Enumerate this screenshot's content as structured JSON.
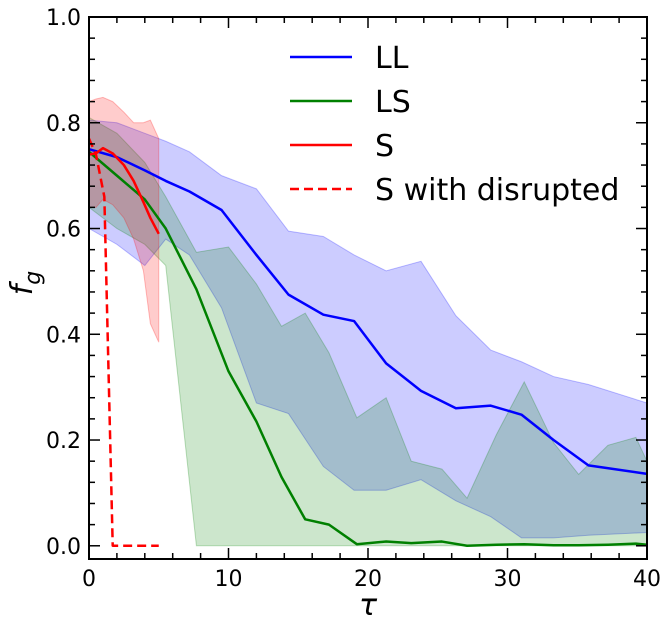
{
  "chart_data": {
    "type": "line",
    "title": "",
    "xlabel": "τ",
    "ylabel_main": "f",
    "ylabel_sub": "g",
    "xlim": [
      0,
      40
    ],
    "ylim": [
      -0.025,
      1.0
    ],
    "xticks": [
      0,
      10,
      20,
      30,
      40
    ],
    "xtick_labels": [
      "0",
      "10",
      "20",
      "30",
      "40"
    ],
    "yticks": [
      0.0,
      0.2,
      0.4,
      0.6,
      0.8,
      1.0
    ],
    "ytick_labels": [
      "0.0",
      "0.2",
      "0.4",
      "0.6",
      "0.8",
      "1.0"
    ],
    "grid": false,
    "legend_position": "top-right",
    "series": [
      {
        "name": "LL",
        "color": "#0000ff",
        "style": "solid",
        "x": [
          0,
          2,
          4,
          5.5,
          7.2,
          9.5,
          12,
          14.3,
          16.8,
          19,
          21.3,
          23.8,
          26.3,
          28.8,
          31,
          33.3,
          35.8,
          40
        ],
        "y": [
          0.75,
          0.735,
          0.71,
          0.69,
          0.67,
          0.635,
          0.55,
          0.475,
          0.437,
          0.425,
          0.345,
          0.293,
          0.26,
          0.265,
          0.248,
          0.2,
          0.152,
          0.136
        ],
        "band_upper": [
          0.805,
          0.8,
          0.78,
          0.765,
          0.745,
          0.7,
          0.675,
          0.595,
          0.585,
          0.55,
          0.52,
          0.538,
          0.435,
          0.37,
          0.348,
          0.32,
          0.305,
          0.27
        ],
        "band_lower": [
          0.6,
          0.57,
          0.53,
          0.58,
          0.55,
          0.45,
          0.27,
          0.25,
          0.15,
          0.105,
          0.105,
          0.125,
          0.085,
          0.055,
          0.015,
          0.015,
          0.02,
          0.025
        ]
      },
      {
        "name": "LS",
        "color": "#008000",
        "style": "solid",
        "x": [
          0,
          2,
          4,
          5.5,
          7.7,
          10,
          12,
          13.8,
          15.5,
          17.2,
          19.2,
          21.3,
          23.1,
          25.3,
          27.1,
          29.2,
          31.2,
          33.3,
          35.1,
          37.2,
          39.2,
          40
        ],
        "y": [
          0.745,
          0.7,
          0.655,
          0.6,
          0.485,
          0.33,
          0.235,
          0.13,
          0.05,
          0.04,
          0.003,
          0.008,
          0.005,
          0.008,
          0.0,
          0.002,
          0.003,
          0.001,
          0.001,
          0.002,
          0.004,
          0.002
        ],
        "band_upper": [
          0.81,
          0.78,
          0.725,
          0.66,
          0.555,
          0.565,
          0.495,
          0.415,
          0.44,
          0.365,
          0.242,
          0.28,
          0.16,
          0.145,
          0.09,
          0.21,
          0.31,
          0.195,
          0.135,
          0.19,
          0.205,
          0.16
        ],
        "band_lower": [
          0.64,
          0.6,
          0.57,
          0.53,
          0.0,
          0.0,
          0.0,
          0.0,
          0.0,
          0.0,
          0.0,
          0.0,
          0.0,
          0.0,
          0.0,
          0.0,
          0.0,
          0.0,
          0.0,
          0.0,
          0.0,
          0.0
        ]
      },
      {
        "name": "S",
        "color": "#ff0000",
        "style": "solid",
        "x": [
          0,
          0.5,
          1.0,
          1.7,
          2.5,
          3.2,
          3.9,
          4.4,
          5.0
        ],
        "y": [
          0.74,
          0.742,
          0.752,
          0.742,
          0.72,
          0.69,
          0.65,
          0.62,
          0.59
        ],
        "band_upper": [
          0.84,
          0.845,
          0.848,
          0.84,
          0.82,
          0.8,
          0.8,
          0.805,
          0.77
        ],
        "band_lower": [
          0.64,
          0.64,
          0.655,
          0.645,
          0.62,
          0.58,
          0.52,
          0.42,
          0.385
        ]
      },
      {
        "name": "S with disrupted",
        "color": "#ff0000",
        "style": "dashed",
        "x": [
          0,
          0.5,
          1.1,
          1.7,
          2.5,
          3.5,
          5.0
        ],
        "y": [
          0.77,
          0.74,
          0.66,
          0.0,
          0.0,
          0.0,
          0.0
        ]
      }
    ]
  }
}
